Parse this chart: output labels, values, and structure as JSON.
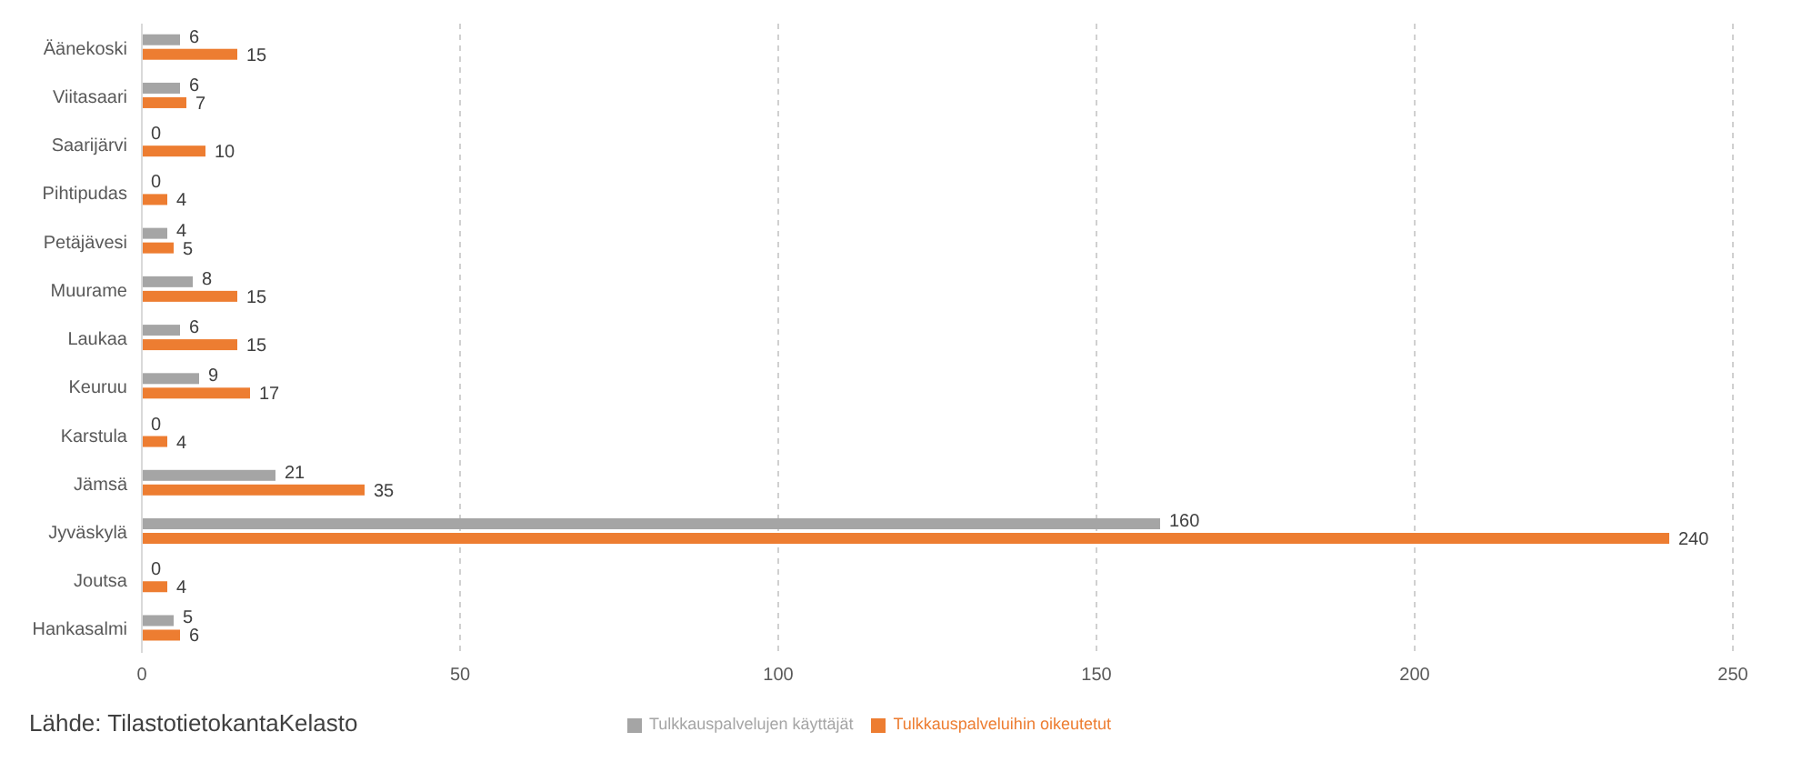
{
  "chart_data": {
    "type": "bar",
    "orientation": "horizontal",
    "categories": [
      "Äänekoski",
      "Viitasaari",
      "Saarijärvi",
      "Pihtipudas",
      "Petäjävesi",
      "Muurame",
      "Laukaa",
      "Keuruu",
      "Karstula",
      "Jämsä",
      "Jyväskylä",
      "Joutsa",
      "Hankasalmi"
    ],
    "series": [
      {
        "name": "Tulkkauspalvelujen käyttäjät",
        "color": "#a5a5a5",
        "values": [
          6,
          6,
          0,
          0,
          4,
          8,
          6,
          9,
          0,
          21,
          160,
          0,
          5
        ]
      },
      {
        "name": "Tulkkauspalveluihin oikeutetut",
        "color": "#ed7d31",
        "values": [
          15,
          7,
          10,
          4,
          5,
          15,
          15,
          17,
          4,
          35,
          240,
          4,
          6
        ]
      }
    ],
    "xlim": [
      0,
      250
    ],
    "xticks": [
      0,
      50,
      100,
      150,
      200,
      250
    ],
    "grid": "x",
    "legend": "bottom",
    "data_labels": true,
    "annotations": [
      "Lähde: TilastotietokantaKelasto"
    ]
  }
}
